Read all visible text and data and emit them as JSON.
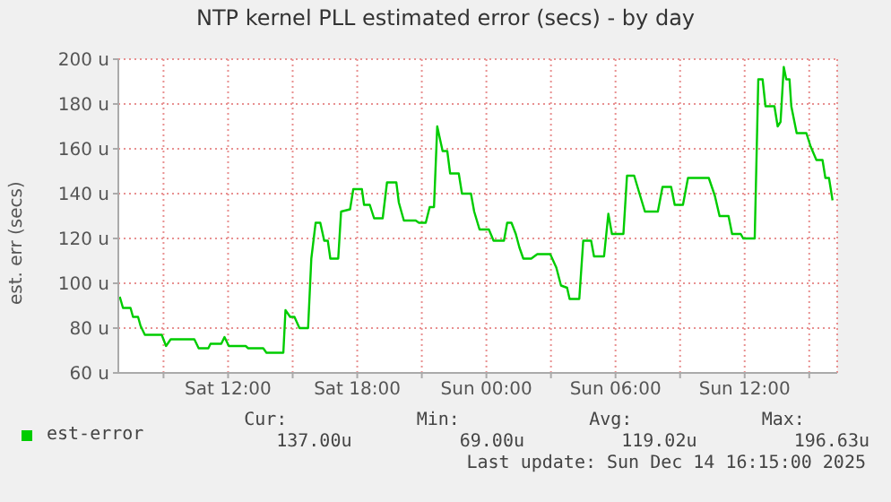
{
  "chart_data": {
    "type": "line",
    "title": "NTP kernel PLL estimated error (secs) - by day",
    "ylabel": "est. err (secs)",
    "xlim": [
      "2025-12-13T06:54",
      "2025-12-14T16:18"
    ],
    "xticks": [
      {
        "value": "2025-12-13T09:00",
        "label": null
      },
      {
        "value": "2025-12-13T12:00",
        "label": "Sat 12:00"
      },
      {
        "value": "2025-12-13T15:00",
        "label": null
      },
      {
        "value": "2025-12-13T18:00",
        "label": "Sat 18:00"
      },
      {
        "value": "2025-12-13T21:00",
        "label": null
      },
      {
        "value": "2025-12-14T00:00",
        "label": "Sun 00:00"
      },
      {
        "value": "2025-12-14T03:00",
        "label": null
      },
      {
        "value": "2025-12-14T06:00",
        "label": "Sun 06:00"
      },
      {
        "value": "2025-12-14T09:00",
        "label": null
      },
      {
        "value": "2025-12-14T12:00",
        "label": "Sun 12:00"
      },
      {
        "value": "2025-12-14T15:00",
        "label": null
      }
    ],
    "ylim": [
      60,
      200
    ],
    "yticks": [
      {
        "value": 60,
        "label": "60 u"
      },
      {
        "value": 80,
        "label": "80 u"
      },
      {
        "value": 100,
        "label": "100 u"
      },
      {
        "value": 120,
        "label": "120 u"
      },
      {
        "value": 140,
        "label": "140 u"
      },
      {
        "value": 160,
        "label": "160 u"
      },
      {
        "value": 180,
        "label": "180 u"
      },
      {
        "value": 200,
        "label": "200 u"
      }
    ],
    "grid": true,
    "legend": "bottom left",
    "annotations": [
      "Cur:",
      "Min:",
      "Avg:",
      "Max:",
      "137.00u",
      "69.00u",
      "119.02u",
      "196.63u",
      "Last update: Sun Dec 14 16:15:00 2025"
    ],
    "series": [
      {
        "name": "est-error",
        "color": "#00cc00",
        "x": [
          "2025-12-13T06:58",
          "2025-12-13T07:07",
          "2025-12-13T07:28",
          "2025-12-13T07:35",
          "2025-12-13T07:49",
          "2025-12-13T07:56",
          "2025-12-13T08:08",
          "2025-12-13T08:55",
          "2025-12-13T09:07",
          "2025-12-13T09:20",
          "2025-12-13T09:53",
          "2025-12-13T10:02",
          "2025-12-13T10:26",
          "2025-12-13T10:38",
          "2025-12-13T11:05",
          "2025-12-13T11:11",
          "2025-12-13T11:41",
          "2025-12-13T11:50",
          "2025-12-13T12:02",
          "2025-12-13T12:49",
          "2025-12-13T12:56",
          "2025-12-13T13:38",
          "2025-12-13T13:47",
          "2025-12-13T14:34",
          "2025-12-13T14:40",
          "2025-12-13T14:53",
          "2025-12-13T15:05",
          "2025-12-13T15:19",
          "2025-12-13T15:43",
          "2025-12-13T15:52",
          "2025-12-13T16:04",
          "2025-12-13T16:17",
          "2025-12-13T16:28",
          "2025-12-13T16:38",
          "2025-12-13T16:45",
          "2025-12-13T17:07",
          "2025-12-13T17:15",
          "2025-12-13T17:40",
          "2025-12-13T17:49",
          "2025-12-13T18:13",
          "2025-12-13T18:19",
          "2025-12-13T18:35",
          "2025-12-13T18:47",
          "2025-12-13T19:11",
          "2025-12-13T19:23",
          "2025-12-13T19:49",
          "2025-12-13T19:56",
          "2025-12-13T20:10",
          "2025-12-13T20:43",
          "2025-12-13T20:52",
          "2025-12-13T21:11",
          "2025-12-13T21:22",
          "2025-12-13T21:34",
          "2025-12-13T21:43",
          "2025-12-13T21:58",
          "2025-12-13T22:11",
          "2025-12-13T22:19",
          "2025-12-13T22:43",
          "2025-12-13T22:52",
          "2025-12-13T23:17",
          "2025-12-13T23:26",
          "2025-12-13T23:41",
          "2025-12-14T00:07",
          "2025-12-14T00:20",
          "2025-12-14T00:45",
          "2025-12-14T00:49",
          "2025-12-14T00:58",
          "2025-12-14T01:10",
          "2025-12-14T01:22",
          "2025-12-14T01:32",
          "2025-12-14T01:43",
          "2025-12-14T02:05",
          "2025-12-14T02:22",
          "2025-12-14T02:58",
          "2025-12-14T03:15",
          "2025-12-14T03:28",
          "2025-12-14T03:45",
          "2025-12-14T03:52",
          "2025-12-14T04:19",
          "2025-12-14T04:30",
          "2025-12-14T04:52",
          "2025-12-14T05:00",
          "2025-12-14T05:28",
          "2025-12-14T05:40",
          "2025-12-14T05:50",
          "2025-12-14T06:22",
          "2025-12-14T06:32",
          "2025-12-14T06:52",
          "2025-12-14T07:05",
          "2025-12-14T07:22",
          "2025-12-14T07:58",
          "2025-12-14T08:11",
          "2025-12-14T08:35",
          "2025-12-14T08:45",
          "2025-12-14T09:08",
          "2025-12-14T09:22",
          "2025-12-14T10:20",
          "2025-12-14T10:37",
          "2025-12-14T10:50",
          "2025-12-14T11:15",
          "2025-12-14T11:25",
          "2025-12-14T11:49",
          "2025-12-14T11:56",
          "2025-12-14T12:28",
          "2025-12-14T12:38",
          "2025-12-14T12:50",
          "2025-12-14T12:58",
          "2025-12-14T13:23",
          "2025-12-14T13:32",
          "2025-12-14T13:40",
          "2025-12-14T13:49",
          "2025-12-14T13:56",
          "2025-12-14T14:05",
          "2025-12-14T14:10",
          "2025-12-14T14:25",
          "2025-12-14T14:52",
          "2025-12-14T15:04",
          "2025-12-14T15:20",
          "2025-12-14T15:37",
          "2025-12-14T15:45",
          "2025-12-14T15:55",
          "2025-12-14T16:05"
        ],
        "values": [
          94,
          89,
          89,
          85,
          85,
          81,
          77,
          77,
          72,
          75,
          75,
          75,
          75,
          71,
          71,
          73,
          73,
          76,
          72,
          72,
          71,
          71,
          69,
          69,
          88,
          85,
          85,
          80,
          80,
          111,
          127,
          127,
          119,
          119,
          111,
          111,
          132,
          133,
          142,
          142,
          135,
          135,
          129,
          129,
          145,
          145,
          136,
          128,
          128,
          127,
          127,
          134,
          134,
          170,
          159,
          159,
          149,
          149,
          140,
          140,
          132,
          124,
          124,
          119,
          119,
          119,
          127,
          127,
          122,
          116,
          111,
          111,
          113,
          113,
          107,
          99,
          98,
          93,
          93,
          119,
          119,
          112,
          112,
          131,
          122,
          122,
          148,
          148,
          141,
          132,
          132,
          143,
          143,
          135,
          135,
          147,
          147,
          139,
          130,
          130,
          122,
          122,
          120,
          120,
          191,
          191,
          179,
          179,
          170,
          172,
          196.5,
          191,
          191,
          179,
          167,
          167,
          161,
          155,
          155,
          147,
          147,
          137
        ]
      }
    ]
  }
}
